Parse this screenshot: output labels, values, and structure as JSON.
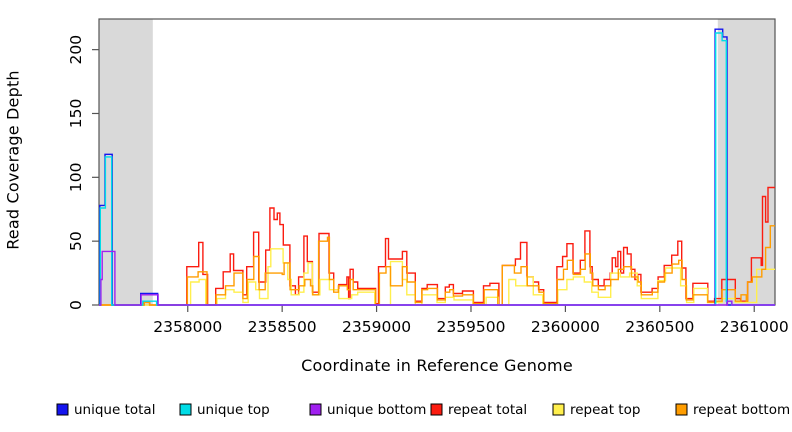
{
  "chart_data": {
    "type": "line",
    "step": true,
    "title": "",
    "xlabel": "Coordinate in Reference Genome",
    "ylabel": "Read Coverage Depth",
    "xlim": [
      2357530,
      2361110
    ],
    "ylim": [
      0,
      224
    ],
    "x_ticks": [
      2358000,
      2358500,
      2359000,
      2359500,
      2360000,
      2360500,
      2361000
    ],
    "y_ticks": [
      0,
      50,
      100,
      150,
      200
    ],
    "grid": false,
    "legend_position": "bottom",
    "background_color": "#ffffff",
    "band_color": "#d9d9d9",
    "frame_color": "#545454",
    "tick_color": "#545454",
    "text_color": "#000000",
    "shaded_regions": [
      {
        "x0": 2357530,
        "x1": 2357815
      },
      {
        "x0": 2360807,
        "x1": 2361110
      }
    ],
    "series": [
      {
        "name": "unique total",
        "color": "#1414ee",
        "points": [
          [
            2357530,
            0
          ],
          [
            2357534,
            78
          ],
          [
            2357562,
            118
          ],
          [
            2357600,
            0
          ],
          [
            2357751,
            9
          ],
          [
            2357841,
            0
          ],
          [
            2360793,
            216
          ],
          [
            2360833,
            210
          ],
          [
            2360856,
            0
          ]
        ]
      },
      {
        "name": "unique top",
        "color": "#00dce6",
        "points": [
          [
            2357530,
            0
          ],
          [
            2357537,
            76
          ],
          [
            2357564,
            116
          ],
          [
            2357597,
            0
          ],
          [
            2357762,
            3
          ],
          [
            2357835,
            0
          ],
          [
            2360796,
            213
          ],
          [
            2360830,
            207
          ],
          [
            2360852,
            3
          ],
          [
            2360880,
            0
          ]
        ]
      },
      {
        "name": "unique bottom",
        "color": "#a020f0",
        "points": [
          [
            2357530,
            0
          ],
          [
            2357540,
            20
          ],
          [
            2357547,
            42
          ],
          [
            2357614,
            0
          ],
          [
            2357753,
            8
          ],
          [
            2357843,
            0
          ],
          [
            2360858,
            3
          ],
          [
            2360882,
            0
          ]
        ]
      },
      {
        "name": "repeat total",
        "color": "#fb1c10",
        "points": [
          [
            2357530,
            0
          ],
          [
            2357765,
            3
          ],
          [
            2357798,
            0
          ],
          [
            2357995,
            30
          ],
          [
            2358058,
            49
          ],
          [
            2358080,
            24
          ],
          [
            2358105,
            0
          ],
          [
            2358148,
            13
          ],
          [
            2358188,
            26
          ],
          [
            2358225,
            40
          ],
          [
            2358243,
            27
          ],
          [
            2358292,
            8
          ],
          [
            2358312,
            30
          ],
          [
            2358349,
            57
          ],
          [
            2358376,
            18
          ],
          [
            2358413,
            43
          ],
          [
            2358435,
            76
          ],
          [
            2358457,
            67
          ],
          [
            2358474,
            72
          ],
          [
            2358488,
            63
          ],
          [
            2358506,
            47
          ],
          [
            2358541,
            15
          ],
          [
            2358570,
            8
          ],
          [
            2358587,
            22
          ],
          [
            2358615,
            54
          ],
          [
            2358633,
            34
          ],
          [
            2358660,
            10
          ],
          [
            2358695,
            56
          ],
          [
            2358748,
            25
          ],
          [
            2358773,
            12
          ],
          [
            2358800,
            16
          ],
          [
            2358843,
            22
          ],
          [
            2358852,
            5
          ],
          [
            2358860,
            28
          ],
          [
            2358876,
            18
          ],
          [
            2358900,
            13
          ],
          [
            2358995,
            1
          ],
          [
            2359010,
            30
          ],
          [
            2359047,
            52
          ],
          [
            2359063,
            36
          ],
          [
            2359137,
            42
          ],
          [
            2359160,
            25
          ],
          [
            2359205,
            3
          ],
          [
            2359240,
            13
          ],
          [
            2359268,
            16
          ],
          [
            2359322,
            5
          ],
          [
            2359364,
            14
          ],
          [
            2359385,
            16
          ],
          [
            2359407,
            9
          ],
          [
            2359455,
            11
          ],
          [
            2359513,
            2
          ],
          [
            2359566,
            15
          ],
          [
            2359600,
            17
          ],
          [
            2359648,
            0
          ],
          [
            2359666,
            31
          ],
          [
            2359735,
            36
          ],
          [
            2359762,
            49
          ],
          [
            2359796,
            22
          ],
          [
            2359830,
            18
          ],
          [
            2359858,
            12
          ],
          [
            2359885,
            2
          ],
          [
            2359955,
            30
          ],
          [
            2359985,
            38
          ],
          [
            2360008,
            48
          ],
          [
            2360040,
            25
          ],
          [
            2360079,
            35
          ],
          [
            2360103,
            58
          ],
          [
            2360130,
            30
          ],
          [
            2360142,
            20
          ],
          [
            2360174,
            15
          ],
          [
            2360205,
            20
          ],
          [
            2360237,
            25
          ],
          [
            2360248,
            37
          ],
          [
            2360266,
            30
          ],
          [
            2360278,
            42
          ],
          [
            2360293,
            25
          ],
          [
            2360308,
            45
          ],
          [
            2360328,
            40
          ],
          [
            2360348,
            28
          ],
          [
            2360368,
            20
          ],
          [
            2360383,
            24
          ],
          [
            2360400,
            10
          ],
          [
            2360459,
            13
          ],
          [
            2360491,
            22
          ],
          [
            2360523,
            31
          ],
          [
            2360563,
            39
          ],
          [
            2360595,
            50
          ],
          [
            2360616,
            29
          ],
          [
            2360638,
            5
          ],
          [
            2360675,
            17
          ],
          [
            2360754,
            3
          ],
          [
            2360790,
            5
          ],
          [
            2360828,
            20
          ],
          [
            2360900,
            5
          ],
          [
            2360928,
            3
          ],
          [
            2360965,
            18
          ],
          [
            2360985,
            37
          ],
          [
            2361037,
            31
          ],
          [
            2361044,
            85
          ],
          [
            2361060,
            65
          ],
          [
            2361073,
            92
          ]
        ]
      },
      {
        "name": "repeat top",
        "color": "#ffef4d",
        "points": [
          [
            2357530,
            0
          ],
          [
            2358015,
            18
          ],
          [
            2358060,
            20
          ],
          [
            2358095,
            0
          ],
          [
            2358155,
            5
          ],
          [
            2358200,
            12
          ],
          [
            2358245,
            10
          ],
          [
            2358292,
            2
          ],
          [
            2358320,
            18
          ],
          [
            2358360,
            12
          ],
          [
            2358380,
            5
          ],
          [
            2358425,
            30
          ],
          [
            2358440,
            44
          ],
          [
            2358505,
            33
          ],
          [
            2358530,
            20
          ],
          [
            2358548,
            8
          ],
          [
            2358590,
            10
          ],
          [
            2358615,
            25
          ],
          [
            2358637,
            33
          ],
          [
            2358660,
            8
          ],
          [
            2358700,
            20
          ],
          [
            2358750,
            12
          ],
          [
            2358800,
            5
          ],
          [
            2358868,
            8
          ],
          [
            2358900,
            10
          ],
          [
            2358990,
            0
          ],
          [
            2359074,
            34
          ],
          [
            2359137,
            20
          ],
          [
            2359160,
            8
          ],
          [
            2359205,
            0
          ],
          [
            2359240,
            8
          ],
          [
            2359320,
            2
          ],
          [
            2359364,
            6
          ],
          [
            2359410,
            4
          ],
          [
            2359510,
            0
          ],
          [
            2359580,
            6
          ],
          [
            2359645,
            0
          ],
          [
            2359700,
            20
          ],
          [
            2359737,
            15
          ],
          [
            2359796,
            22
          ],
          [
            2359830,
            8
          ],
          [
            2359880,
            0
          ],
          [
            2359960,
            12
          ],
          [
            2360008,
            20
          ],
          [
            2360042,
            22
          ],
          [
            2360100,
            18
          ],
          [
            2360140,
            10
          ],
          [
            2360174,
            6
          ],
          [
            2360240,
            25
          ],
          [
            2360290,
            22
          ],
          [
            2360340,
            25
          ],
          [
            2360380,
            15
          ],
          [
            2360402,
            5
          ],
          [
            2360490,
            19
          ],
          [
            2360530,
            29
          ],
          [
            2360610,
            15
          ],
          [
            2360642,
            2
          ],
          [
            2360680,
            13
          ],
          [
            2360752,
            2
          ],
          [
            2360830,
            5
          ],
          [
            2360900,
            2
          ],
          [
            2361013,
            28
          ]
        ]
      },
      {
        "name": "repeat bottom",
        "color": "#ff9d00",
        "points": [
          [
            2357530,
            0
          ],
          [
            2357770,
            2
          ],
          [
            2357798,
            0
          ],
          [
            2357998,
            22
          ],
          [
            2358055,
            26
          ],
          [
            2358102,
            0
          ],
          [
            2358150,
            8
          ],
          [
            2358200,
            15
          ],
          [
            2358245,
            25
          ],
          [
            2358292,
            5
          ],
          [
            2358315,
            20
          ],
          [
            2358350,
            38
          ],
          [
            2358378,
            12
          ],
          [
            2358410,
            25
          ],
          [
            2358500,
            24
          ],
          [
            2358510,
            33
          ],
          [
            2358542,
            12
          ],
          [
            2358590,
            15
          ],
          [
            2358620,
            20
          ],
          [
            2358650,
            15
          ],
          [
            2358662,
            8
          ],
          [
            2358693,
            50
          ],
          [
            2358740,
            53
          ],
          [
            2358750,
            20
          ],
          [
            2358773,
            10
          ],
          [
            2358798,
            15
          ],
          [
            2358845,
            12
          ],
          [
            2358860,
            20
          ],
          [
            2358876,
            12
          ],
          [
            2358995,
            0
          ],
          [
            2359015,
            25
          ],
          [
            2359050,
            30
          ],
          [
            2359074,
            15
          ],
          [
            2359137,
            30
          ],
          [
            2359162,
            18
          ],
          [
            2359205,
            2
          ],
          [
            2359240,
            12
          ],
          [
            2359270,
            13
          ],
          [
            2359322,
            4
          ],
          [
            2359364,
            10
          ],
          [
            2359387,
            12
          ],
          [
            2359407,
            7
          ],
          [
            2359455,
            8
          ],
          [
            2359513,
            1
          ],
          [
            2359570,
            12
          ],
          [
            2359642,
            0
          ],
          [
            2359666,
            31
          ],
          [
            2359730,
            25
          ],
          [
            2359765,
            30
          ],
          [
            2359798,
            15
          ],
          [
            2359830,
            15
          ],
          [
            2359860,
            10
          ],
          [
            2359885,
            1
          ],
          [
            2359957,
            20
          ],
          [
            2359990,
            28
          ],
          [
            2360010,
            35
          ],
          [
            2360042,
            24
          ],
          [
            2360080,
            28
          ],
          [
            2360105,
            40
          ],
          [
            2360132,
            25
          ],
          [
            2360145,
            15
          ],
          [
            2360175,
            12
          ],
          [
            2360210,
            15
          ],
          [
            2360240,
            20
          ],
          [
            2360280,
            28
          ],
          [
            2360310,
            30
          ],
          [
            2360350,
            22
          ],
          [
            2360385,
            18
          ],
          [
            2360402,
            8
          ],
          [
            2360460,
            10
          ],
          [
            2360490,
            18
          ],
          [
            2360525,
            25
          ],
          [
            2360565,
            32
          ],
          [
            2360600,
            35
          ],
          [
            2360618,
            20
          ],
          [
            2360640,
            4
          ],
          [
            2360676,
            8
          ],
          [
            2360754,
            2
          ],
          [
            2360795,
            3
          ],
          [
            2360830,
            12
          ],
          [
            2360900,
            3
          ],
          [
            2360930,
            8
          ],
          [
            2360958,
            3
          ],
          [
            2360965,
            18
          ],
          [
            2360990,
            22
          ],
          [
            2361040,
            28
          ],
          [
            2361060,
            45
          ],
          [
            2361085,
            62
          ]
        ]
      }
    ],
    "draw_order": [
      3,
      4,
      5,
      0,
      1,
      2
    ]
  },
  "legend": {
    "items": [
      "unique total",
      "unique top",
      "unique bottom",
      "repeat total",
      "repeat top",
      "repeat bottom"
    ]
  }
}
